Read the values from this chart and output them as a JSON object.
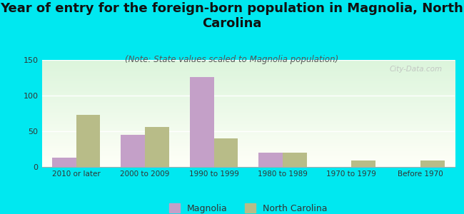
{
  "title": "Year of entry for the foreign-born population in Magnolia, North\nCarolina",
  "subtitle": "(Note: State values scaled to Magnolia population)",
  "categories": [
    "2010 or later",
    "2000 to 2009",
    "1990 to 1999",
    "1980 to 1989",
    "1970 to 1979",
    "Before 1970"
  ],
  "magnolia_values": [
    13,
    45,
    126,
    20,
    0,
    0
  ],
  "nc_values": [
    73,
    56,
    40,
    20,
    9,
    9
  ],
  "magnolia_color": "#c4a0c8",
  "nc_color": "#b8bc88",
  "background_color": "#00e8f0",
  "ylim": [
    0,
    150
  ],
  "yticks": [
    0,
    50,
    100,
    150
  ],
  "bar_width": 0.35,
  "title_fontsize": 13,
  "subtitle_fontsize": 8.5,
  "watermark": "City-Data.com"
}
